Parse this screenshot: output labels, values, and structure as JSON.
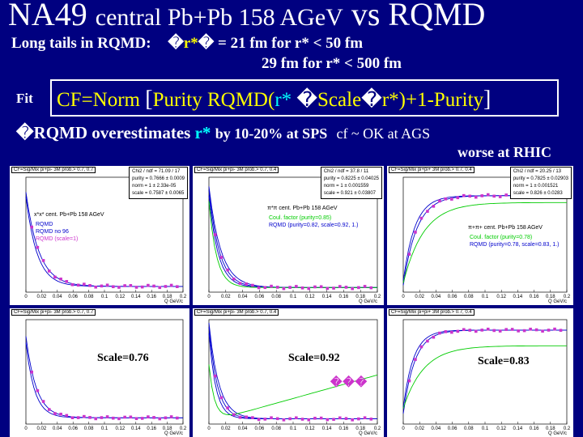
{
  "header": {
    "title_a": "NA49",
    "title_b": "central Pb+Pb 158 AGeV",
    "title_c": "vs RQMD"
  },
  "long_tails": {
    "label": "Long tails in RQMD:",
    "glyph1": "�",
    "sym": "r*",
    "glyph2": "�",
    "line1": "= 21 fm for r* < 50 fm",
    "line2": "29 fm for r* < 500 fm"
  },
  "fit": {
    "label": "Fit",
    "cf_norm": "CF=Norm",
    "bracket_open": "[",
    "purity_rqmd": "Purity RQMD(",
    "rstar": "r*",
    "glyph": "�",
    "scale": "Scale",
    "glyph2": "�",
    "rstar2": "r*)",
    "plus": "+1-Purity",
    "bracket_close": "]"
  },
  "conclusion": {
    "glyph": "�",
    "text_a": "RQMD overestimates",
    "rstar": "r*",
    "text_b": "by 10-20% at SPS",
    "text_c": "cf ~ OK at AGS",
    "text_d": "worse at RHIC"
  },
  "panels_top": [
    {
      "title": "CF=Sig/Mix pi+pi- 3M prob.> 0.7, 0.7",
      "stats": "Chi2 / ndf = 71.09 / 17\npurity = 0.7666 ± 0.0009\nnorm = 1 ± 2.33e-05\nscale = 0.7587 ± 0.0065",
      "legend_title": "x*x*    cent. Pb+Pb 158 AGeV",
      "legend": [
        "RQMD",
        "RQMD no 96",
        "RQMD (scale=1)"
      ]
    },
    {
      "title": "CF=Sig/Mix pi+pi- 3M prob.> 0.7, 0.4",
      "stats": "Chi2 / ndf = 37.8 / 11\npurity = 0.8225 ± 0.04025\nnorm = 1 ± 0.001559\nscale = 0.921 ± 0.03807",
      "legend_title": "π*π    cent. Pb+Pb 158 AGeV",
      "legend": [
        "Coul. factor (purity=0.85)",
        "RQMD (purity=0.82, scale=0.92, 1.)"
      ]
    },
    {
      "title": "CF=Sig/Mix pi+pi+ 3M prob.> 0.7, 0.4",
      "stats": "Chi2 / ndf = 20.25 / 13\npurity = 0.7825 ± 0.02903\nnorm = 1 ± 0.001521\nscale = 0.826 ± 0.0283",
      "legend_title": "π+π+    cent. Pb+Pb 158 AGeV",
      "legend": [
        "Coul. factor (purity=0.78)",
        "RQMD (purity=0.78, scale=0.83, 1.)"
      ]
    }
  ],
  "panels_bottom": [
    {
      "title": "CF=Sig/Mix pi+pi- 3M prob.> 0.7, 0.7",
      "scale": "Scale=0.76"
    },
    {
      "title": "CF=Sig/Mix pi+pi- 3M prob.> 0.7, 0.4",
      "scale": "Scale=0.92"
    },
    {
      "title": "CF=Sig/Mix pi+pi+ 3M prob.> 0.7, 0.4",
      "scale": "Scale=0.83"
    }
  ],
  "glyphs_mid": "���",
  "xaxis_label": "Q GeV/c",
  "xticks": [
    "0",
    "0.02",
    "0.04",
    "0.06",
    "0.08",
    "0.1",
    "0.12",
    "0.14",
    "0.16",
    "0.18",
    "0.2"
  ],
  "colors": {
    "background": "#000080",
    "markers": "#cc33cc",
    "model": "#0000cc",
    "coulomb": "#00cc00",
    "text": "#ffffff",
    "accent": "#00ffff"
  }
}
